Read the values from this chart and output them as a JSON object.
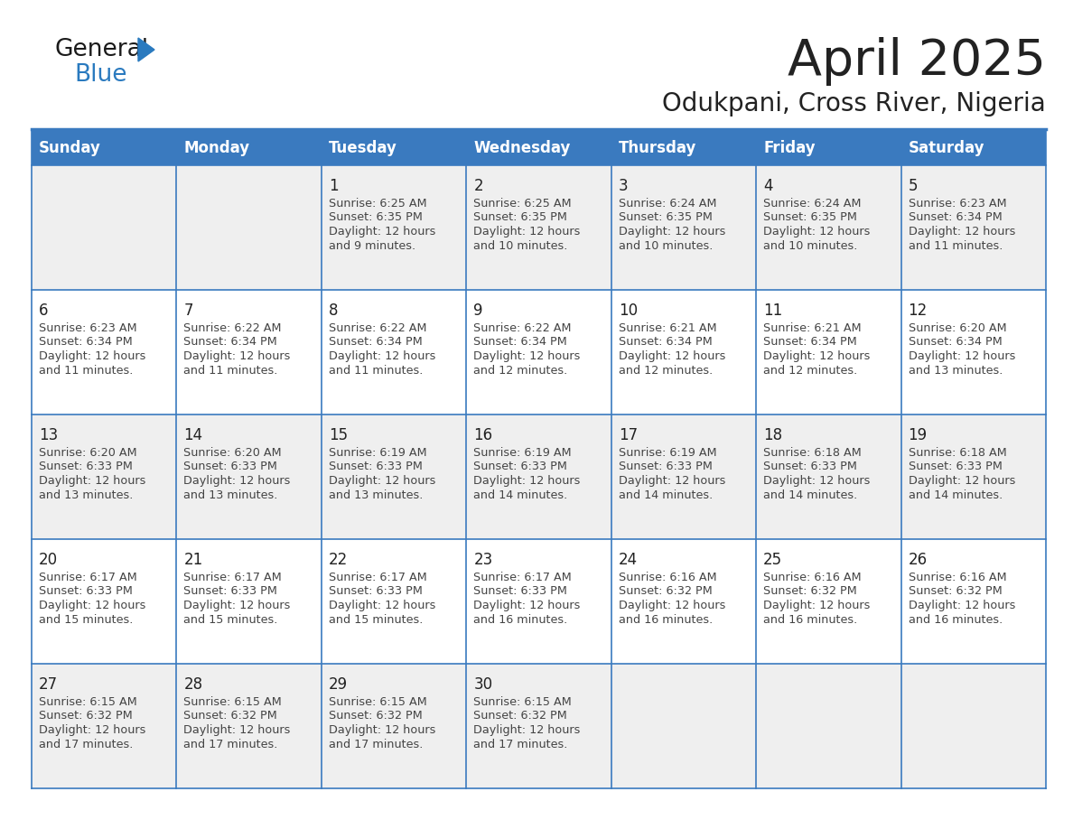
{
  "title": "April 2025",
  "subtitle": "Odukpani, Cross River, Nigeria",
  "days_of_week": [
    "Sunday",
    "Monday",
    "Tuesday",
    "Wednesday",
    "Thursday",
    "Friday",
    "Saturday"
  ],
  "header_bg": "#3a7abf",
  "header_text": "#ffffff",
  "cell_bg_odd": "#efefef",
  "cell_bg_even": "#ffffff",
  "border_color": "#3a7abf",
  "day_num_color": "#222222",
  "info_color": "#444444",
  "title_color": "#222222",
  "subtitle_color": "#222222",
  "logo_general_color": "#1a1a1a",
  "logo_blue_color": "#2a7abf",
  "calendar_data": [
    [
      {
        "day": null,
        "sunrise": null,
        "sunset": null,
        "daylight": null
      },
      {
        "day": null,
        "sunrise": null,
        "sunset": null,
        "daylight": null
      },
      {
        "day": 1,
        "sunrise": "6:25 AM",
        "sunset": "6:35 PM",
        "daylight": "12 hours\nand 9 minutes."
      },
      {
        "day": 2,
        "sunrise": "6:25 AM",
        "sunset": "6:35 PM",
        "daylight": "12 hours\nand 10 minutes."
      },
      {
        "day": 3,
        "sunrise": "6:24 AM",
        "sunset": "6:35 PM",
        "daylight": "12 hours\nand 10 minutes."
      },
      {
        "day": 4,
        "sunrise": "6:24 AM",
        "sunset": "6:35 PM",
        "daylight": "12 hours\nand 10 minutes."
      },
      {
        "day": 5,
        "sunrise": "6:23 AM",
        "sunset": "6:34 PM",
        "daylight": "12 hours\nand 11 minutes."
      }
    ],
    [
      {
        "day": 6,
        "sunrise": "6:23 AM",
        "sunset": "6:34 PM",
        "daylight": "12 hours\nand 11 minutes."
      },
      {
        "day": 7,
        "sunrise": "6:22 AM",
        "sunset": "6:34 PM",
        "daylight": "12 hours\nand 11 minutes."
      },
      {
        "day": 8,
        "sunrise": "6:22 AM",
        "sunset": "6:34 PM",
        "daylight": "12 hours\nand 11 minutes."
      },
      {
        "day": 9,
        "sunrise": "6:22 AM",
        "sunset": "6:34 PM",
        "daylight": "12 hours\nand 12 minutes."
      },
      {
        "day": 10,
        "sunrise": "6:21 AM",
        "sunset": "6:34 PM",
        "daylight": "12 hours\nand 12 minutes."
      },
      {
        "day": 11,
        "sunrise": "6:21 AM",
        "sunset": "6:34 PM",
        "daylight": "12 hours\nand 12 minutes."
      },
      {
        "day": 12,
        "sunrise": "6:20 AM",
        "sunset": "6:34 PM",
        "daylight": "12 hours\nand 13 minutes."
      }
    ],
    [
      {
        "day": 13,
        "sunrise": "6:20 AM",
        "sunset": "6:33 PM",
        "daylight": "12 hours\nand 13 minutes."
      },
      {
        "day": 14,
        "sunrise": "6:20 AM",
        "sunset": "6:33 PM",
        "daylight": "12 hours\nand 13 minutes."
      },
      {
        "day": 15,
        "sunrise": "6:19 AM",
        "sunset": "6:33 PM",
        "daylight": "12 hours\nand 13 minutes."
      },
      {
        "day": 16,
        "sunrise": "6:19 AM",
        "sunset": "6:33 PM",
        "daylight": "12 hours\nand 14 minutes."
      },
      {
        "day": 17,
        "sunrise": "6:19 AM",
        "sunset": "6:33 PM",
        "daylight": "12 hours\nand 14 minutes."
      },
      {
        "day": 18,
        "sunrise": "6:18 AM",
        "sunset": "6:33 PM",
        "daylight": "12 hours\nand 14 minutes."
      },
      {
        "day": 19,
        "sunrise": "6:18 AM",
        "sunset": "6:33 PM",
        "daylight": "12 hours\nand 14 minutes."
      }
    ],
    [
      {
        "day": 20,
        "sunrise": "6:17 AM",
        "sunset": "6:33 PM",
        "daylight": "12 hours\nand 15 minutes."
      },
      {
        "day": 21,
        "sunrise": "6:17 AM",
        "sunset": "6:33 PM",
        "daylight": "12 hours\nand 15 minutes."
      },
      {
        "day": 22,
        "sunrise": "6:17 AM",
        "sunset": "6:33 PM",
        "daylight": "12 hours\nand 15 minutes."
      },
      {
        "day": 23,
        "sunrise": "6:17 AM",
        "sunset": "6:33 PM",
        "daylight": "12 hours\nand 16 minutes."
      },
      {
        "day": 24,
        "sunrise": "6:16 AM",
        "sunset": "6:32 PM",
        "daylight": "12 hours\nand 16 minutes."
      },
      {
        "day": 25,
        "sunrise": "6:16 AM",
        "sunset": "6:32 PM",
        "daylight": "12 hours\nand 16 minutes."
      },
      {
        "day": 26,
        "sunrise": "6:16 AM",
        "sunset": "6:32 PM",
        "daylight": "12 hours\nand 16 minutes."
      }
    ],
    [
      {
        "day": 27,
        "sunrise": "6:15 AM",
        "sunset": "6:32 PM",
        "daylight": "12 hours\nand 17 minutes."
      },
      {
        "day": 28,
        "sunrise": "6:15 AM",
        "sunset": "6:32 PM",
        "daylight": "12 hours\nand 17 minutes."
      },
      {
        "day": 29,
        "sunrise": "6:15 AM",
        "sunset": "6:32 PM",
        "daylight": "12 hours\nand 17 minutes."
      },
      {
        "day": 30,
        "sunrise": "6:15 AM",
        "sunset": "6:32 PM",
        "daylight": "12 hours\nand 17 minutes."
      },
      {
        "day": null,
        "sunrise": null,
        "sunset": null,
        "daylight": null
      },
      {
        "day": null,
        "sunrise": null,
        "sunset": null,
        "daylight": null
      },
      {
        "day": null,
        "sunrise": null,
        "sunset": null,
        "daylight": null
      }
    ]
  ]
}
